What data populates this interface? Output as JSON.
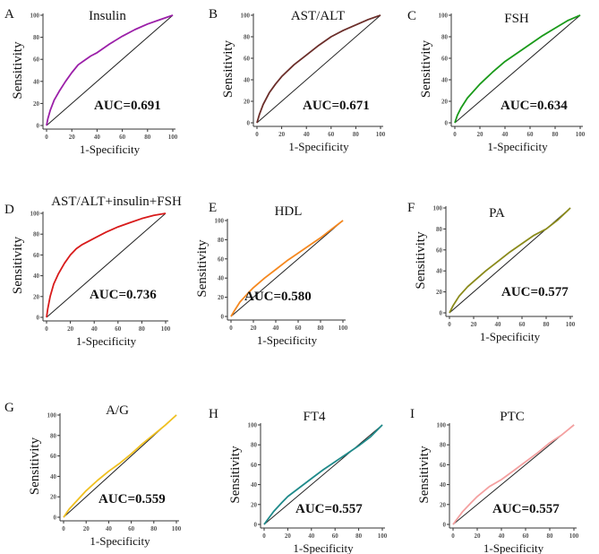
{
  "chart_data": [
    {
      "type": "line",
      "panel": "A",
      "title": "Insulin",
      "auc_label": "AUC=0.691",
      "xlabel": "1-Specificity",
      "ylabel": "Sensitivity",
      "xlim": [
        0,
        100
      ],
      "ylim": [
        0,
        100
      ],
      "ticks": [
        0,
        20,
        40,
        60,
        80,
        100
      ],
      "color": "#9b1fa8",
      "x": [
        0,
        1,
        3,
        6,
        10,
        15,
        20,
        25,
        30,
        35,
        40,
        50,
        60,
        70,
        80,
        90,
        100
      ],
      "y": [
        0,
        6,
        14,
        23,
        31,
        40,
        48,
        55,
        59,
        63,
        66,
        74,
        81,
        87,
        92,
        96,
        100
      ]
    },
    {
      "type": "line",
      "panel": "B",
      "title": "AST/ALT",
      "auc_label": "AUC=0.671",
      "xlabel": "1-Specificity",
      "ylabel": "Sensitivity",
      "xlim": [
        0,
        100
      ],
      "ylim": [
        0,
        100
      ],
      "ticks": [
        0,
        20,
        40,
        60,
        80,
        100
      ],
      "color": "#6b2e2a",
      "x": [
        0,
        2,
        5,
        10,
        15,
        20,
        30,
        40,
        50,
        60,
        70,
        80,
        90,
        100
      ],
      "y": [
        0,
        8,
        17,
        28,
        36,
        43,
        54,
        63,
        72,
        80,
        86,
        91,
        96,
        100
      ]
    },
    {
      "type": "line",
      "panel": "C",
      "title": "FSH",
      "auc_label": "AUC=0.634",
      "xlabel": "1-Specificity",
      "ylabel": "Sensitivity",
      "xlim": [
        0,
        100
      ],
      "ylim": [
        0,
        100
      ],
      "ticks": [
        0,
        20,
        40,
        60,
        80,
        100
      ],
      "color": "#1a9a1a",
      "x": [
        0,
        2,
        5,
        10,
        20,
        30,
        40,
        50,
        60,
        70,
        80,
        90,
        100
      ],
      "y": [
        0,
        7,
        14,
        23,
        36,
        47,
        57,
        65,
        73,
        81,
        88,
        95,
        100
      ]
    },
    {
      "type": "line",
      "panel": "D",
      "title": "AST/ALT+insulin+FSH",
      "auc_label": "AUC=0.736",
      "xlabel": "1-Specificity",
      "ylabel": "Sensitivity",
      "xlim": [
        0,
        100
      ],
      "ylim": [
        0,
        100
      ],
      "ticks": [
        0,
        20,
        40,
        60,
        80,
        100
      ],
      "color": "#d81b1b",
      "x": [
        0,
        1,
        3,
        6,
        10,
        15,
        20,
        25,
        30,
        40,
        50,
        60,
        70,
        80,
        90,
        100
      ],
      "y": [
        0,
        8,
        20,
        32,
        42,
        52,
        60,
        66,
        70,
        76,
        82,
        87,
        91,
        95,
        98,
        100
      ]
    },
    {
      "type": "line",
      "panel": "E",
      "title": "HDL",
      "auc_label": "AUC=0.580",
      "xlabel": "1-Specificity",
      "ylabel": "Sensitivity",
      "xlim": [
        0,
        100
      ],
      "ylim": [
        0,
        100
      ],
      "ticks": [
        0,
        20,
        40,
        60,
        80,
        100
      ],
      "color": "#f5881f",
      "x": [
        0,
        3,
        8,
        15,
        20,
        30,
        40,
        50,
        60,
        70,
        80,
        90,
        100
      ],
      "y": [
        0,
        6,
        15,
        24,
        30,
        40,
        49,
        58,
        66,
        74,
        82,
        91,
        100
      ]
    },
    {
      "type": "line",
      "panel": "F",
      "title": "PA",
      "auc_label": "AUC=0.577",
      "xlabel": "1-Specificity",
      "ylabel": "Sensitivity",
      "xlim": [
        0,
        100
      ],
      "ylim": [
        0,
        100
      ],
      "ticks": [
        0,
        20,
        40,
        60,
        80,
        100
      ],
      "color": "#8a8a1a",
      "x": [
        0,
        3,
        8,
        15,
        20,
        30,
        40,
        50,
        60,
        70,
        80,
        90,
        100
      ],
      "y": [
        0,
        7,
        16,
        25,
        30,
        40,
        49,
        58,
        66,
        74,
        80,
        89,
        100
      ]
    },
    {
      "type": "line",
      "panel": "G",
      "title": "A/G",
      "auc_label": "AUC=0.559",
      "xlabel": "1-Specificity",
      "ylabel": "Sensitivity",
      "xlim": [
        0,
        100
      ],
      "ylim": [
        0,
        100
      ],
      "ticks": [
        0,
        20,
        40,
        60,
        80,
        100
      ],
      "color": "#f0c020",
      "x": [
        0,
        5,
        10,
        20,
        30,
        40,
        50,
        60,
        70,
        80,
        90,
        100
      ],
      "y": [
        0,
        8,
        14,
        26,
        36,
        45,
        53,
        62,
        72,
        81,
        90,
        100
      ]
    },
    {
      "type": "line",
      "panel": "H",
      "title": "FT4",
      "auc_label": "AUC=0.557",
      "xlabel": "1-Specificity",
      "ylabel": "Sensitivity",
      "xlim": [
        0,
        100
      ],
      "ylim": [
        0,
        100
      ],
      "ticks": [
        0,
        20,
        40,
        60,
        80,
        100
      ],
      "color": "#1f8a8a",
      "x": [
        0,
        3,
        8,
        15,
        20,
        30,
        40,
        50,
        60,
        70,
        80,
        90,
        100
      ],
      "y": [
        0,
        5,
        13,
        22,
        28,
        37,
        46,
        55,
        63,
        71,
        79,
        88,
        100
      ]
    },
    {
      "type": "line",
      "panel": "I",
      "title": "PTC",
      "auc_label": "AUC=0.557",
      "xlabel": "1-Specificity",
      "ylabel": "Sensitivity",
      "xlim": [
        0,
        100
      ],
      "ylim": [
        0,
        100
      ],
      "ticks": [
        0,
        20,
        40,
        60,
        80,
        100
      ],
      "color": "#f4a0a0",
      "x": [
        0,
        3,
        8,
        15,
        20,
        30,
        40,
        50,
        60,
        70,
        80,
        90,
        100
      ],
      "y": [
        0,
        5,
        13,
        22,
        28,
        38,
        45,
        54,
        63,
        72,
        82,
        90,
        100
      ]
    }
  ]
}
